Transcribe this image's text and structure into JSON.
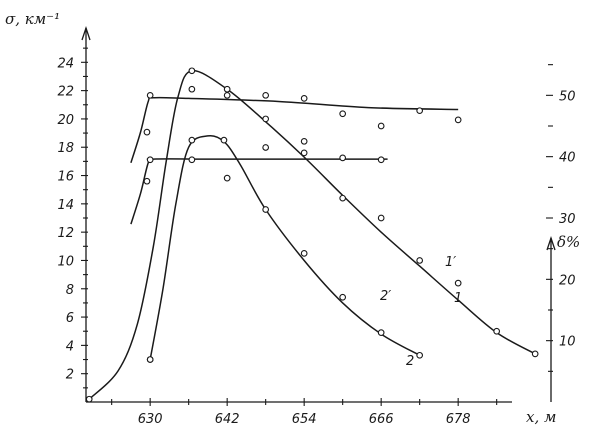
{
  "chart_data": {
    "type": "line",
    "xlabel": "x, м",
    "ylabel_left": "σ, км⁻¹",
    "ylabel_right": "δ%",
    "x_ticks": [
      "630",
      "642",
      "654",
      "666",
      "678"
    ],
    "y_left_ticks": [
      "2",
      "4",
      "6",
      "8",
      "10",
      "12",
      "14",
      "16",
      "18",
      "20",
      "22",
      "24"
    ],
    "y_right_ticks": [
      "10",
      "20",
      "30",
      "40",
      "50"
    ],
    "xlim": [
      620,
      692
    ],
    "ylim_left": [
      0,
      26
    ],
    "ylim_right": [
      0,
      60
    ],
    "grid": false,
    "series": [
      {
        "name": "1",
        "axis": "left",
        "points": [
          [
            620.5,
            0.2
          ],
          [
            630,
            3
          ],
          [
            636.5,
            23.4
          ],
          [
            642,
            22.1
          ],
          [
            648,
            20
          ],
          [
            654,
            17.6
          ],
          [
            660,
            14.4
          ],
          [
            666,
            13
          ],
          [
            672,
            10
          ],
          [
            678,
            8.4
          ],
          [
            684,
            5
          ],
          [
            690,
            3.4
          ]
        ],
        "curve": [
          [
            620.5,
            0.2
          ],
          [
            625,
            2.2
          ],
          [
            628,
            5.5
          ],
          [
            630.5,
            11
          ],
          [
            632.5,
            17
          ],
          [
            634.3,
            21.5
          ],
          [
            636.5,
            23.4
          ],
          [
            642,
            22.1
          ],
          [
            648,
            19.8
          ],
          [
            654,
            17.3
          ],
          [
            660,
            14.6
          ],
          [
            666,
            12
          ],
          [
            672,
            9.6
          ],
          [
            678,
            7.2
          ],
          [
            684,
            4.9
          ],
          [
            690,
            3.4
          ]
        ]
      },
      {
        "name": "2",
        "axis": "left",
        "points": [
          [
            630,
            3
          ],
          [
            636.5,
            18.5
          ],
          [
            641.5,
            18.5
          ],
          [
            648,
            13.6
          ],
          [
            654,
            10.5
          ],
          [
            660,
            7.4
          ],
          [
            666,
            4.9
          ],
          [
            672,
            3.3
          ]
        ],
        "curve": [
          [
            630,
            3
          ],
          [
            632,
            8
          ],
          [
            634,
            14
          ],
          [
            636,
            18
          ],
          [
            639,
            18.8
          ],
          [
            641.5,
            18.4
          ],
          [
            644,
            16.8
          ],
          [
            648,
            13.6
          ],
          [
            654,
            10
          ],
          [
            660,
            7
          ],
          [
            666,
            4.8
          ],
          [
            672,
            3.3
          ]
        ]
      },
      {
        "name": "1′",
        "axis": "right",
        "points": [
          [
            629.5,
            44
          ],
          [
            630,
            50
          ],
          [
            636.5,
            51
          ],
          [
            642,
            50
          ],
          [
            648,
            50
          ],
          [
            654,
            49.5
          ],
          [
            660,
            47
          ],
          [
            666,
            45
          ],
          [
            672,
            47.5
          ],
          [
            678,
            46
          ]
        ],
        "curve": [
          [
            627,
            39
          ],
          [
            628.5,
            44
          ],
          [
            629.7,
            49
          ],
          [
            630.5,
            49.6
          ],
          [
            636,
            49.5
          ],
          [
            650,
            49
          ],
          [
            664,
            48
          ],
          [
            678,
            47.7
          ]
        ]
      },
      {
        "name": "2′",
        "axis": "right",
        "points": [
          [
            629.5,
            36
          ],
          [
            630,
            39.5
          ],
          [
            636.5,
            39.5
          ],
          [
            642,
            36.5
          ],
          [
            648,
            41.5
          ],
          [
            654,
            42.5
          ],
          [
            660,
            39.8
          ],
          [
            666,
            39.5
          ]
        ],
        "curve": [
          [
            627,
            29
          ],
          [
            628.5,
            34
          ],
          [
            629.7,
            39
          ],
          [
            630.5,
            39.6
          ],
          [
            640,
            39.6
          ],
          [
            655,
            39.6
          ],
          [
            667,
            39.6
          ]
        ]
      }
    ]
  }
}
